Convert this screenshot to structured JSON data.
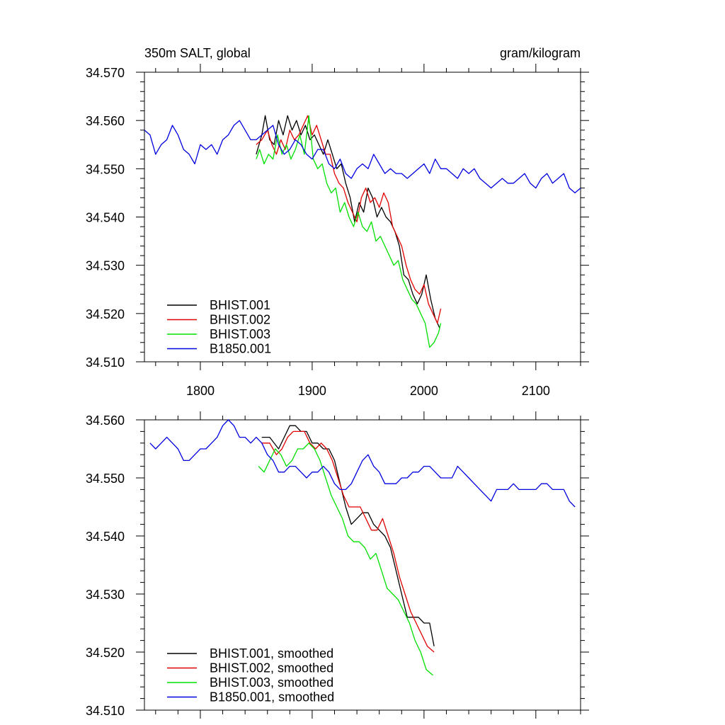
{
  "figure": {
    "title_left": "350m SALT, global",
    "title_right": "gram/kilogram"
  },
  "colors": {
    "BHIST.001": "#000000",
    "BHIST.002": "#e00000",
    "BHIST.003": "#00e000",
    "B1850.001": "#0000e0"
  },
  "chart_data": [
    {
      "type": "line",
      "title": "350m SALT, global",
      "units": "gram/kilogram",
      "xlim": [
        1750,
        2140
      ],
      "ylim": [
        34.51,
        34.57
      ],
      "xticks": [
        1800,
        1900,
        2000,
        2100
      ],
      "xtick_labels": [
        "1800",
        "1900",
        "2000",
        "2100"
      ],
      "yticks": [
        34.51,
        34.52,
        34.53,
        34.54,
        34.55,
        34.56,
        34.57
      ],
      "ytick_labels": [
        "34.510",
        "34.520",
        "34.530",
        "34.540",
        "34.550",
        "34.560",
        "34.570"
      ],
      "legend_position": "bottom-left",
      "series": [
        {
          "name": "BHIST.001",
          "label": "BHIST.001",
          "x": [
            1850,
            1855,
            1858,
            1862,
            1866,
            1870,
            1874,
            1878,
            1882,
            1886,
            1890,
            1894,
            1898,
            1902,
            1906,
            1910,
            1914,
            1918,
            1922,
            1926,
            1930,
            1934,
            1938,
            1942,
            1946,
            1950,
            1954,
            1958,
            1962,
            1966,
            1970,
            1974,
            1978,
            1982,
            1986,
            1990,
            1994,
            1998,
            2002,
            2006,
            2010,
            2014
          ],
          "y": [
            34.553,
            34.557,
            34.561,
            34.556,
            34.555,
            34.56,
            34.557,
            34.561,
            34.558,
            34.56,
            34.557,
            34.559,
            34.556,
            34.557,
            34.555,
            34.553,
            34.556,
            34.553,
            34.55,
            34.551,
            34.547,
            34.544,
            34.539,
            34.543,
            34.541,
            34.546,
            34.544,
            34.54,
            34.542,
            34.54,
            34.539,
            34.537,
            34.534,
            34.528,
            34.527,
            34.524,
            34.522,
            34.524,
            34.528,
            34.523,
            34.519,
            34.517
          ]
        },
        {
          "name": "BHIST.002",
          "label": "BHIST.002",
          "x": [
            1850,
            1855,
            1860,
            1864,
            1868,
            1872,
            1876,
            1880,
            1884,
            1888,
            1892,
            1896,
            1900,
            1904,
            1908,
            1912,
            1916,
            1920,
            1924,
            1928,
            1932,
            1936,
            1940,
            1944,
            1948,
            1952,
            1956,
            1960,
            1964,
            1968,
            1972,
            1976,
            1980,
            1984,
            1988,
            1992,
            1996,
            2000,
            2004,
            2008,
            2012,
            2015
          ],
          "y": [
            34.555,
            34.556,
            34.558,
            34.555,
            34.553,
            34.556,
            34.554,
            34.558,
            34.556,
            34.557,
            34.559,
            34.561,
            34.557,
            34.559,
            34.556,
            34.553,
            34.553,
            34.549,
            34.547,
            34.546,
            34.543,
            34.541,
            34.539,
            34.544,
            34.546,
            34.543,
            34.544,
            34.542,
            34.545,
            34.543,
            34.538,
            34.536,
            34.534,
            34.53,
            34.527,
            34.525,
            34.524,
            34.526,
            34.522,
            34.52,
            34.518,
            34.521
          ]
        },
        {
          "name": "BHIST.003",
          "label": "BHIST.003",
          "x": [
            1850,
            1853,
            1857,
            1861,
            1865,
            1869,
            1873,
            1877,
            1881,
            1885,
            1889,
            1893,
            1897,
            1901,
            1905,
            1909,
            1913,
            1917,
            1921,
            1925,
            1929,
            1933,
            1937,
            1941,
            1945,
            1949,
            1953,
            1957,
            1961,
            1965,
            1969,
            1973,
            1977,
            1981,
            1985,
            1989,
            1993,
            1997,
            2001,
            2005,
            2009,
            2013,
            2015
          ],
          "y": [
            34.552,
            34.554,
            34.551,
            34.553,
            34.552,
            34.557,
            34.553,
            34.555,
            34.552,
            34.554,
            34.557,
            34.553,
            34.561,
            34.552,
            34.55,
            34.551,
            34.547,
            34.545,
            34.546,
            34.541,
            34.543,
            34.54,
            34.538,
            34.541,
            34.538,
            34.537,
            34.539,
            34.535,
            34.536,
            34.534,
            34.532,
            34.53,
            34.531,
            34.527,
            34.525,
            34.523,
            34.522,
            34.52,
            34.518,
            34.513,
            34.514,
            34.516,
            34.518
          ]
        },
        {
          "name": "B1850.001",
          "label": "B1850.001",
          "x": [
            1750,
            1755,
            1760,
            1765,
            1770,
            1775,
            1780,
            1785,
            1790,
            1795,
            1800,
            1805,
            1810,
            1815,
            1820,
            1825,
            1830,
            1835,
            1840,
            1845,
            1850,
            1855,
            1860,
            1865,
            1870,
            1875,
            1880,
            1885,
            1890,
            1895,
            1900,
            1905,
            1910,
            1915,
            1920,
            1925,
            1930,
            1935,
            1940,
            1945,
            1950,
            1955,
            1960,
            1965,
            1970,
            1975,
            1980,
            1985,
            1990,
            1995,
            2000,
            2005,
            2010,
            2015,
            2020,
            2025,
            2030,
            2035,
            2040,
            2045,
            2050,
            2055,
            2060,
            2065,
            2070,
            2075,
            2080,
            2085,
            2090,
            2095,
            2100,
            2105,
            2110,
            2115,
            2120,
            2125,
            2130,
            2135,
            2140
          ],
          "y": [
            34.558,
            34.557,
            34.553,
            34.555,
            34.556,
            34.559,
            34.557,
            34.554,
            34.553,
            34.551,
            34.555,
            34.554,
            34.555,
            34.553,
            34.556,
            34.557,
            34.559,
            34.56,
            34.558,
            34.556,
            34.556,
            34.557,
            34.558,
            34.559,
            34.555,
            34.553,
            34.554,
            34.556,
            34.555,
            34.553,
            34.552,
            34.554,
            34.554,
            34.551,
            34.55,
            34.552,
            34.549,
            34.548,
            34.55,
            34.551,
            34.55,
            34.553,
            34.551,
            34.549,
            34.55,
            34.549,
            34.549,
            34.548,
            34.549,
            34.55,
            34.551,
            34.549,
            34.552,
            34.55,
            34.55,
            34.549,
            34.548,
            34.55,
            34.549,
            34.55,
            34.548,
            34.547,
            34.546,
            34.547,
            34.548,
            34.547,
            34.547,
            34.548,
            34.549,
            34.547,
            34.546,
            34.548,
            34.549,
            34.547,
            34.548,
            34.549,
            34.546,
            34.545,
            34.546
          ]
        }
      ]
    },
    {
      "type": "line",
      "title": "",
      "xlim": [
        1750,
        2140
      ],
      "ylim": [
        34.51,
        34.56
      ],
      "xticks": [
        1800,
        1900,
        2000,
        2100
      ],
      "xtick_labels": [],
      "yticks": [
        34.51,
        34.52,
        34.53,
        34.54,
        34.55,
        34.56
      ],
      "ytick_labels": [
        "34.510",
        "34.520",
        "34.530",
        "34.540",
        "34.550",
        "34.560"
      ],
      "legend_position": "bottom-left",
      "series": [
        {
          "name": "BHIST.001",
          "label": "BHIST.001, smoothed",
          "x": [
            1855,
            1862,
            1870,
            1875,
            1880,
            1885,
            1890,
            1895,
            1900,
            1905,
            1910,
            1915,
            1920,
            1925,
            1930,
            1935,
            1940,
            1945,
            1950,
            1955,
            1960,
            1965,
            1970,
            1975,
            1980,
            1985,
            1990,
            1995,
            2000,
            2005,
            2009
          ],
          "y": [
            34.557,
            34.557,
            34.555,
            34.557,
            34.559,
            34.559,
            34.558,
            34.558,
            34.556,
            34.556,
            34.555,
            34.555,
            34.553,
            34.549,
            34.545,
            34.542,
            34.543,
            34.544,
            34.544,
            34.542,
            34.541,
            34.54,
            34.538,
            34.534,
            34.53,
            34.526,
            34.526,
            34.526,
            34.525,
            34.525,
            34.521
          ]
        },
        {
          "name": "BHIST.002",
          "label": "BHIST.002, smoothed",
          "x": [
            1855,
            1862,
            1868,
            1873,
            1878,
            1883,
            1888,
            1893,
            1898,
            1903,
            1908,
            1913,
            1918,
            1923,
            1928,
            1933,
            1938,
            1943,
            1948,
            1953,
            1958,
            1963,
            1968,
            1973,
            1978,
            1983,
            1988,
            1993,
            1998,
            2003,
            2009
          ],
          "y": [
            34.556,
            34.556,
            34.554,
            34.555,
            34.557,
            34.558,
            34.558,
            34.558,
            34.556,
            34.555,
            34.556,
            34.555,
            34.553,
            34.55,
            34.547,
            34.545,
            34.545,
            34.545,
            34.543,
            34.541,
            34.541,
            34.543,
            34.54,
            34.537,
            34.533,
            34.53,
            34.527,
            34.525,
            34.523,
            34.521,
            34.52
          ]
        },
        {
          "name": "BHIST.003",
          "label": "BHIST.003, smoothed",
          "x": [
            1852,
            1857,
            1862,
            1867,
            1872,
            1877,
            1882,
            1887,
            1892,
            1897,
            1902,
            1907,
            1912,
            1917,
            1922,
            1927,
            1932,
            1937,
            1942,
            1947,
            1952,
            1957,
            1962,
            1967,
            1972,
            1977,
            1982,
            1987,
            1992,
            1997,
            2002,
            2008
          ],
          "y": [
            34.552,
            34.551,
            34.553,
            34.555,
            34.554,
            34.552,
            34.553,
            34.555,
            34.555,
            34.556,
            34.555,
            34.553,
            34.55,
            34.547,
            34.545,
            34.543,
            34.54,
            34.539,
            34.539,
            34.538,
            34.536,
            34.537,
            34.534,
            34.531,
            34.53,
            34.529,
            34.527,
            34.525,
            34.522,
            34.52,
            34.517,
            34.516
          ]
        },
        {
          "name": "B1850.001",
          "label": "B1850.001, smoothed",
          "x": [
            1755,
            1760,
            1765,
            1770,
            1775,
            1780,
            1785,
            1790,
            1795,
            1800,
            1805,
            1810,
            1815,
            1820,
            1825,
            1830,
            1835,
            1840,
            1845,
            1850,
            1855,
            1860,
            1865,
            1870,
            1875,
            1880,
            1885,
            1890,
            1895,
            1900,
            1905,
            1910,
            1915,
            1920,
            1925,
            1930,
            1935,
            1940,
            1945,
            1950,
            1955,
            1960,
            1965,
            1970,
            1975,
            1980,
            1985,
            1990,
            1995,
            2000,
            2005,
            2010,
            2015,
            2020,
            2025,
            2030,
            2035,
            2040,
            2045,
            2050,
            2055,
            2060,
            2065,
            2070,
            2075,
            2080,
            2085,
            2090,
            2095,
            2100,
            2105,
            2110,
            2115,
            2120,
            2125,
            2130,
            2135
          ],
          "y": [
            34.556,
            34.555,
            34.556,
            34.557,
            34.556,
            34.555,
            34.553,
            34.553,
            34.554,
            34.555,
            34.555,
            34.556,
            34.557,
            34.559,
            34.56,
            34.559,
            34.557,
            34.557,
            34.556,
            34.557,
            34.556,
            34.554,
            34.553,
            34.551,
            34.551,
            34.552,
            34.552,
            34.551,
            34.55,
            34.551,
            34.551,
            34.552,
            34.551,
            34.549,
            34.548,
            34.548,
            34.549,
            34.551,
            34.553,
            34.554,
            34.552,
            34.551,
            34.549,
            34.549,
            34.549,
            34.55,
            34.55,
            34.551,
            34.551,
            34.552,
            34.552,
            34.551,
            34.55,
            34.55,
            34.55,
            34.552,
            34.551,
            34.55,
            34.549,
            34.548,
            34.547,
            34.546,
            34.548,
            34.548,
            34.548,
            34.549,
            34.548,
            34.548,
            34.548,
            34.548,
            34.549,
            34.549,
            34.548,
            34.548,
            34.548,
            34.546,
            34.545
          ]
        }
      ]
    }
  ]
}
